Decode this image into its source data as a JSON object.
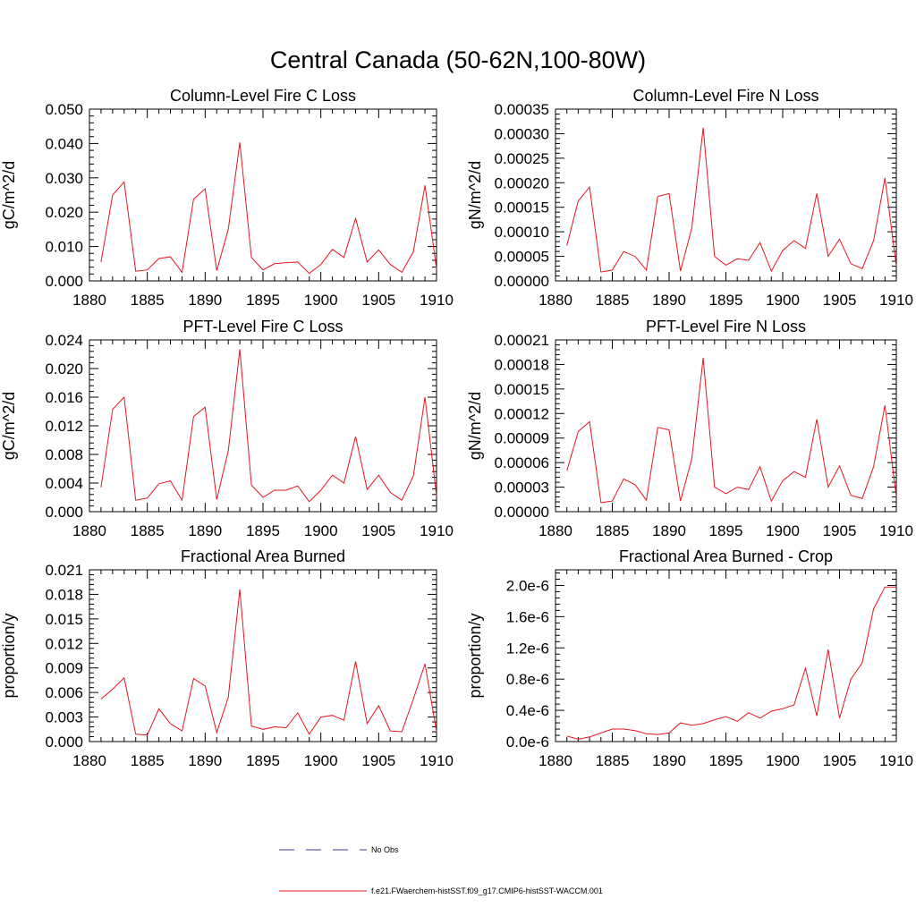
{
  "title": "Central Canada (50-62N,100-80W)",
  "legend": [
    {
      "label": "No Obs",
      "color": "#3b3b9e",
      "style": "dashed"
    },
    {
      "label": "f.e21.FWaerchem-histSST.f09_g17.CMIP6-histSST-WACCM.001",
      "color": "#e8141c",
      "style": "solid"
    }
  ],
  "chart_data": [
    {
      "type": "line",
      "title": "Column-Level Fire C Loss",
      "ylabel": "gC/m^2/d",
      "xlim": [
        1880,
        1910
      ],
      "ylim": [
        0,
        0.05
      ],
      "xticks": [
        "1880",
        "1885",
        "1890",
        "1895",
        "1900",
        "1905",
        "1910"
      ],
      "yticks": [
        "0.000",
        "0.010",
        "0.020",
        "0.030",
        "0.040",
        "0.050"
      ],
      "yticks_values": [
        0,
        0.01,
        0.02,
        0.03,
        0.04,
        0.05
      ],
      "series": [
        {
          "color": "#e8141c",
          "x": [
            1881,
            1882,
            1883,
            1884,
            1885,
            1886,
            1887,
            1888,
            1889,
            1890,
            1891,
            1892,
            1893,
            1894,
            1895,
            1896,
            1897,
            1898,
            1899,
            1900,
            1901,
            1902,
            1903,
            1904,
            1905,
            1906,
            1907,
            1908,
            1909,
            1910
          ],
          "values": [
            0.0055,
            0.025,
            0.0288,
            0.0028,
            0.0032,
            0.0065,
            0.007,
            0.0025,
            0.0238,
            0.0268,
            0.003,
            0.015,
            0.0403,
            0.0068,
            0.0032,
            0.005,
            0.0053,
            0.0055,
            0.0022,
            0.0048,
            0.0092,
            0.0068,
            0.0182,
            0.0055,
            0.009,
            0.0048,
            0.0025,
            0.0085,
            0.0278,
            0.0035
          ]
        }
      ]
    },
    {
      "type": "line",
      "title": "Column-Level Fire N Loss",
      "ylabel": "gN/m^2/d",
      "xlim": [
        1880,
        1910
      ],
      "ylim": [
        0,
        0.00035
      ],
      "xticks": [
        "1880",
        "1885",
        "1890",
        "1895",
        "1900",
        "1905",
        "1910"
      ],
      "yticks": [
        "0.00000",
        "0.00005",
        "0.00010",
        "0.00015",
        "0.00020",
        "0.00025",
        "0.00030",
        "0.00035"
      ],
      "yticks_values": [
        0,
        5e-05,
        0.0001,
        0.00015,
        0.0002,
        0.00025,
        0.0003,
        0.00035
      ],
      "series": [
        {
          "color": "#e8141c",
          "x": [
            1881,
            1882,
            1883,
            1884,
            1885,
            1886,
            1887,
            1888,
            1889,
            1890,
            1891,
            1892,
            1893,
            1894,
            1895,
            1896,
            1897,
            1898,
            1899,
            1900,
            1901,
            1902,
            1903,
            1904,
            1905,
            1906,
            1907,
            1908,
            1909,
            1910
          ],
          "values": [
            7.2e-05,
            0.000163,
            0.000191,
            1.8e-05,
            2.2e-05,
            6e-05,
            5e-05,
            2.2e-05,
            0.000172,
            0.000178,
            2e-05,
            0.000108,
            0.000312,
            5e-05,
            3.2e-05,
            4.5e-05,
            4.2e-05,
            7.8e-05,
            2e-05,
            6.2e-05,
            8.2e-05,
            6.6e-05,
            0.000178,
            5e-05,
            8.5e-05,
            3.5e-05,
            2.5e-05,
            8.2e-05,
            0.00021,
            3e-05
          ]
        }
      ]
    },
    {
      "type": "line",
      "title": "PFT-Level Fire C Loss",
      "ylabel": "gC/m^2/d",
      "xlim": [
        1880,
        1910
      ],
      "ylim": [
        0,
        0.024
      ],
      "xticks": [
        "1880",
        "1885",
        "1890",
        "1895",
        "1900",
        "1905",
        "1910"
      ],
      "yticks": [
        "0.000",
        "0.004",
        "0.008",
        "0.012",
        "0.016",
        "0.020",
        "0.024"
      ],
      "yticks_values": [
        0,
        0.004,
        0.008,
        0.012,
        0.016,
        0.02,
        0.024
      ],
      "series": [
        {
          "color": "#e8141c",
          "x": [
            1881,
            1882,
            1883,
            1884,
            1885,
            1886,
            1887,
            1888,
            1889,
            1890,
            1891,
            1892,
            1893,
            1894,
            1895,
            1896,
            1897,
            1898,
            1899,
            1900,
            1901,
            1902,
            1903,
            1904,
            1905,
            1906,
            1907,
            1908,
            1909,
            1910
          ],
          "values": [
            0.0034,
            0.0143,
            0.016,
            0.0016,
            0.0019,
            0.0039,
            0.0043,
            0.0016,
            0.0133,
            0.0146,
            0.0017,
            0.0085,
            0.0227,
            0.0037,
            0.002,
            0.003,
            0.003,
            0.0036,
            0.0014,
            0.003,
            0.0051,
            0.004,
            0.0105,
            0.0031,
            0.0051,
            0.0027,
            0.0016,
            0.005,
            0.016,
            0.0022
          ]
        }
      ]
    },
    {
      "type": "line",
      "title": "PFT-Level Fire N Loss",
      "ylabel": "gN/m^2/d",
      "xlim": [
        1880,
        1910
      ],
      "ylim": [
        0,
        0.00021
      ],
      "xticks": [
        "1880",
        "1885",
        "1890",
        "1895",
        "1900",
        "1905",
        "1910"
      ],
      "yticks": [
        "0.00000",
        "0.00003",
        "0.00006",
        "0.00009",
        "0.00012",
        "0.00015",
        "0.00018",
        "0.00021"
      ],
      "yticks_values": [
        0,
        3e-05,
        6e-05,
        9e-05,
        0.00012,
        0.00015,
        0.00018,
        0.00021
      ],
      "series": [
        {
          "color": "#e8141c",
          "x": [
            1881,
            1882,
            1883,
            1884,
            1885,
            1886,
            1887,
            1888,
            1889,
            1890,
            1891,
            1892,
            1893,
            1894,
            1895,
            1896,
            1897,
            1898,
            1899,
            1900,
            1901,
            1902,
            1903,
            1904,
            1905,
            1906,
            1907,
            1908,
            1909,
            1910
          ],
          "values": [
            5e-05,
            9.8e-05,
            0.00011,
            1.1e-05,
            1.3e-05,
            4e-05,
            3.3e-05,
            1.4e-05,
            0.000103,
            0.0001,
            1.3e-05,
            6.5e-05,
            0.000188,
            3e-05,
            2.2e-05,
            3e-05,
            2.7e-05,
            5.5e-05,
            1.3e-05,
            3.8e-05,
            4.9e-05,
            4.2e-05,
            0.000113,
            3e-05,
            5.6e-05,
            2e-05,
            1.6e-05,
            5.5e-05,
            0.00013,
            1.8e-05
          ]
        }
      ]
    },
    {
      "type": "line",
      "title": "Fractional Area Burned",
      "ylabel": "proportion/y",
      "xlim": [
        1880,
        1910
      ],
      "ylim": [
        0,
        0.021
      ],
      "xticks": [
        "1880",
        "1885",
        "1890",
        "1895",
        "1900",
        "1905",
        "1910"
      ],
      "yticks": [
        "0.000",
        "0.003",
        "0.006",
        "0.009",
        "0.012",
        "0.015",
        "0.018",
        "0.021"
      ],
      "yticks_values": [
        0,
        0.003,
        0.006,
        0.009,
        0.012,
        0.015,
        0.018,
        0.021
      ],
      "series": [
        {
          "color": "#e8141c",
          "x": [
            1881,
            1882,
            1883,
            1884,
            1885,
            1886,
            1887,
            1888,
            1889,
            1890,
            1891,
            1892,
            1893,
            1894,
            1895,
            1896,
            1897,
            1898,
            1899,
            1900,
            1901,
            1902,
            1903,
            1904,
            1905,
            1906,
            1907,
            1908,
            1909,
            1910
          ],
          "values": [
            0.0052,
            0.0064,
            0.0078,
            0.0009,
            0.0008,
            0.004,
            0.0022,
            0.0013,
            0.0077,
            0.0068,
            0.0011,
            0.0054,
            0.0186,
            0.0019,
            0.0015,
            0.0018,
            0.0017,
            0.0035,
            0.0009,
            0.003,
            0.0032,
            0.0026,
            0.0098,
            0.0022,
            0.0044,
            0.0013,
            0.0012,
            0.0052,
            0.0095,
            0.0012
          ]
        }
      ]
    },
    {
      "type": "line",
      "title": "Fractional Area Burned - Crop",
      "ylabel": "proportion/y",
      "xlim": [
        1880,
        1910
      ],
      "ylim": [
        0,
        2.2e-06
      ],
      "xticks": [
        "1880",
        "1885",
        "1890",
        "1895",
        "1900",
        "1905",
        "1910"
      ],
      "yticks": [
        "0.0e-6",
        "0.4e-6",
        "0.8e-6",
        "1.2e-6",
        "1.6e-6",
        "2.0e-6"
      ],
      "yticks_values": [
        0,
        4e-07,
        8e-07,
        1.2e-06,
        1.6e-06,
        2e-06
      ],
      "series": [
        {
          "color": "#e8141c",
          "x": [
            1881,
            1882,
            1883,
            1884,
            1885,
            1886,
            1887,
            1888,
            1889,
            1890,
            1891,
            1892,
            1893,
            1894,
            1895,
            1896,
            1897,
            1898,
            1899,
            1900,
            1901,
            1902,
            1903,
            1904,
            1905,
            1906,
            1907,
            1908,
            1909,
            1910
          ],
          "values": [
            7e-08,
            3e-08,
            6e-08,
            1.1e-07,
            1.6e-07,
            1.6e-07,
            1.4e-07,
            1e-07,
            9e-08,
            1.1e-07,
            2.4e-07,
            2.1e-07,
            2.3e-07,
            2.8e-07,
            3.2e-07,
            2.6e-07,
            3.7e-07,
            3e-07,
            3.9e-07,
            4.2e-07,
            4.7e-07,
            9.4e-07,
            3.3e-07,
            1.18e-06,
            3e-07,
            8e-07,
            1.01e-06,
            1.7e-06,
            1.98e-06,
            1.98e-06
          ]
        }
      ]
    }
  ]
}
